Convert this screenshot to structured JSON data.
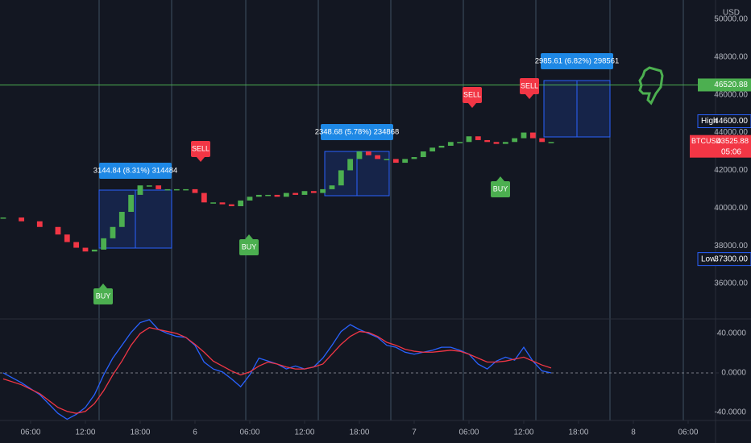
{
  "chart_data": [
    {
      "type": "candlestick",
      "currency": "USD",
      "x": [
        3,
        5,
        7,
        9,
        10,
        11,
        12,
        13,
        14,
        15,
        16,
        17,
        18,
        19,
        20,
        21,
        22,
        23,
        24,
        25,
        26,
        27,
        28,
        29,
        30,
        31,
        32,
        33,
        34,
        35,
        36,
        37,
        38,
        39,
        40,
        41,
        42,
        43,
        44,
        45,
        46,
        47,
        48,
        49,
        50,
        51,
        52,
        53,
        54,
        55,
        56,
        57,
        58,
        59,
        60,
        61,
        62,
        63
      ],
      "values": [
        39500,
        39300,
        39000,
        38600,
        38200,
        37900,
        37700,
        37800,
        38400,
        39000,
        39800,
        40700,
        41200,
        41200,
        41000,
        41000,
        41000,
        41000,
        40800,
        40300,
        40300,
        40200,
        40100,
        40400,
        40600,
        40700,
        40700,
        40600,
        40800,
        40700,
        40900,
        40800,
        41000,
        41200,
        42000,
        42600,
        43000,
        42800,
        42600,
        42600,
        42400,
        42600,
        42700,
        43000,
        43200,
        43300,
        43500,
        43500,
        43800,
        43600,
        43500,
        43400,
        43500,
        43700,
        44000,
        43700,
        43500,
        43500
      ],
      "up_color": "#4caf50",
      "down_color": "#f23645",
      "xlim": [
        2.65,
        81.0
      ],
      "xticks": [
        {
          "value": 6,
          "label": "06:00"
        },
        {
          "value": 12,
          "label": "12:00"
        },
        {
          "value": 18,
          "label": "18:00"
        },
        {
          "value": 24,
          "label": "6"
        },
        {
          "value": 30,
          "label": "06:00"
        },
        {
          "value": 36,
          "label": "12:00"
        },
        {
          "value": 42,
          "label": "18:00"
        },
        {
          "value": 48,
          "label": "7"
        },
        {
          "value": 54,
          "label": "06:00"
        },
        {
          "value": 60,
          "label": "12:00"
        },
        {
          "value": 66,
          "label": "18:00"
        },
        {
          "value": 72,
          "label": "8"
        },
        {
          "value": 78,
          "label": "06:00"
        }
      ],
      "ylim": [
        34170,
        51020
      ],
      "yticks": [
        {
          "value": 36000,
          "label": "36000.00"
        },
        {
          "value": 38000,
          "label": "38000.00"
        },
        {
          "value": 40000,
          "label": "40000.00"
        },
        {
          "value": 42000,
          "label": "42000.00"
        },
        {
          "value": 44000,
          "label": "44000.00"
        },
        {
          "value": 46000,
          "label": "46000.00"
        },
        {
          "value": 48000,
          "label": "48000.00"
        },
        {
          "value": 50000,
          "label": "50000.00"
        }
      ],
      "price_line": {
        "value": 46520.88,
        "label": "46520.88",
        "color": "#4caf50"
      },
      "high": {
        "name": "High",
        "value": 44600,
        "label": "44600.00"
      },
      "low": {
        "name": "Low",
        "value": 37300,
        "label": "37300.00"
      },
      "last": {
        "symbol": "BTCUSD",
        "value": 43525.88,
        "label": "43525.88",
        "countdown": "05:06"
      },
      "measurements": [
        "3144.84 (8.31%) 314484",
        "2348.68 (5.78%) 234868",
        "2985.61 (6.82%) 298561"
      ],
      "signals": [
        "BUY",
        "SELL",
        "BUY",
        "SELL",
        "BUY",
        "SELL"
      ]
    },
    {
      "type": "line",
      "x": [
        3,
        5,
        7,
        9,
        10,
        11,
        12,
        13,
        14,
        15,
        16,
        17,
        18,
        19,
        20,
        21,
        22,
        23,
        24,
        25,
        26,
        27,
        28,
        29,
        30,
        31,
        32,
        33,
        34,
        35,
        36,
        37,
        38,
        39,
        40,
        41,
        42,
        43,
        44,
        45,
        46,
        47,
        48,
        49,
        50,
        51,
        52,
        53,
        54,
        55,
        56,
        57,
        58,
        59,
        60,
        61,
        62,
        63
      ],
      "series": [
        {
          "color": "#2962ff",
          "values": [
            0,
            -10,
            -22,
            -41,
            -47,
            -42,
            -35,
            -22,
            -2,
            15,
            28,
            41,
            51,
            54,
            44,
            40,
            37,
            36,
            28,
            11,
            4,
            1,
            -6,
            -14,
            -2,
            15,
            12,
            9,
            4,
            7,
            4,
            6,
            15,
            28,
            42,
            49,
            44,
            40,
            36,
            28,
            26,
            21,
            19,
            21,
            23,
            26,
            26,
            23,
            19,
            9,
            4,
            12,
            16,
            13,
            26,
            12,
            2,
            0
          ]
        },
        {
          "color": "#f23645",
          "values": [
            -6,
            -12,
            -21,
            -35,
            -39,
            -41,
            -39,
            -31,
            -18,
            -2,
            12,
            28,
            40,
            46,
            44,
            42,
            40,
            36,
            29,
            21,
            12,
            7,
            2,
            -2,
            1,
            7,
            11,
            9,
            6,
            4,
            4,
            6,
            9,
            19,
            29,
            37,
            42,
            41,
            37,
            31,
            28,
            24,
            22,
            21,
            21,
            22,
            23,
            22,
            19,
            15,
            11,
            11,
            12,
            14,
            16,
            12,
            8,
            5
          ]
        }
      ],
      "ylim": [
        -48.2,
        53.9
      ],
      "yticks": [
        {
          "value": 40,
          "label": "40.0000"
        },
        {
          "value": 0,
          "label": "0.0000"
        },
        {
          "value": -40,
          "label": "-40.0000"
        }
      ]
    }
  ]
}
